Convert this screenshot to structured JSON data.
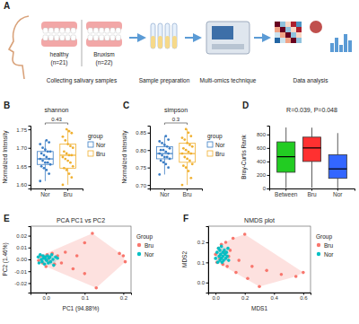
{
  "diagram": {
    "panel": "A",
    "groups": [
      {
        "label": "healthy",
        "n": "(n=21)"
      },
      {
        "label": "Bruxism",
        "n": "(n=22)"
      }
    ],
    "steps": [
      "Collecting salivary samples",
      "Sample preparation",
      "Multi-omics technique",
      "Data analysis"
    ]
  },
  "chart_data": [
    {
      "panel": "B",
      "type": "box",
      "title": "shannon",
      "ylabel": "Normalized Intensity",
      "legend_title": "group",
      "legend": "right",
      "annotations": [
        "0.43"
      ],
      "categories": [
        "Nor",
        "Bru"
      ],
      "ylim": [
        1.59,
        1.76
      ],
      "yticks": [
        {
          "value": 1.6,
          "label": "1.60"
        },
        1.65,
        {
          "value": 1.7,
          "label": "1.70"
        },
        1.75
      ],
      "series": [
        {
          "name": "Nor",
          "color": "#3b7dc4",
          "box": {
            "min": 1.61,
            "q1": 1.655,
            "median": 1.67,
            "q3": 1.69,
            "max": 1.72
          },
          "points": [
            1.61,
            1.63,
            1.64,
            1.645,
            1.65,
            1.655,
            1.66,
            1.66,
            1.665,
            1.67,
            1.67,
            1.675,
            1.68,
            1.685,
            1.69,
            1.69,
            1.695,
            1.7,
            1.71,
            1.715,
            1.72
          ]
        },
        {
          "name": "Bru",
          "color": "#f0b030",
          "box": {
            "min": 1.6,
            "q1": 1.645,
            "median": 1.68,
            "q3": 1.71,
            "max": 1.75
          },
          "points": [
            1.6,
            1.62,
            1.63,
            1.64,
            1.645,
            1.65,
            1.66,
            1.665,
            1.67,
            1.675,
            1.68,
            1.68,
            1.685,
            1.69,
            1.7,
            1.705,
            1.71,
            1.72,
            1.73,
            1.74,
            1.745,
            1.75
          ]
        }
      ]
    },
    {
      "panel": "C",
      "type": "box",
      "title": "simpson",
      "ylabel": "Normalized Intensity",
      "legend_title": "group",
      "legend": "right",
      "annotations": [
        "0.3"
      ],
      "categories": [
        "Nor",
        "Bru"
      ],
      "ylim": [
        0.69,
        0.87
      ],
      "yticks": [
        {
          "value": 0.7,
          "label": "0.70"
        },
        0.75,
        {
          "value": 0.8,
          "label": "0.80"
        },
        0.85
      ],
      "series": [
        {
          "name": "Nor",
          "color": "#3b7dc4",
          "box": {
            "min": 0.73,
            "q1": 0.775,
            "median": 0.79,
            "q3": 0.81,
            "max": 0.84
          },
          "points": [
            0.73,
            0.75,
            0.76,
            0.765,
            0.77,
            0.775,
            0.78,
            0.78,
            0.785,
            0.79,
            0.79,
            0.795,
            0.8,
            0.8,
            0.805,
            0.81,
            0.815,
            0.82,
            0.825,
            0.83,
            0.84
          ]
        },
        {
          "name": "Bru",
          "color": "#f0b030",
          "box": {
            "min": 0.7,
            "q1": 0.765,
            "median": 0.79,
            "q3": 0.82,
            "max": 0.86
          },
          "points": [
            0.7,
            0.72,
            0.74,
            0.75,
            0.755,
            0.76,
            0.77,
            0.775,
            0.78,
            0.79,
            0.79,
            0.795,
            0.8,
            0.805,
            0.81,
            0.815,
            0.82,
            0.83,
            0.835,
            0.84,
            0.85,
            0.86
          ]
        }
      ]
    },
    {
      "panel": "D",
      "type": "box",
      "title": "R=0.039, P=0.048",
      "ylabel": "Bray-Curtis Rank",
      "categories": [
        "Between",
        "Bru",
        "Nor"
      ],
      "colors": [
        "#22cc22",
        "#ff3030",
        "#3366ff"
      ],
      "ylim": [
        0,
        930
      ],
      "yticks": [
        0,
        200,
        400,
        600,
        800
      ],
      "boxes": [
        {
          "min": 5,
          "q1": 240,
          "median": 470,
          "q3": 690,
          "max": 903
        },
        {
          "min": 10,
          "q1": 400,
          "median": 600,
          "q3": 760,
          "max": 900
        },
        {
          "min": 1,
          "q1": 150,
          "median": 290,
          "q3": 500,
          "max": 820
        }
      ]
    },
    {
      "panel": "E",
      "type": "scatter",
      "title": "PCA PC1 vs PC2",
      "xlabel": "PC1 (94.88%)",
      "ylabel": "PC2 (1.46%)",
      "legend_title": "Group",
      "legend": "right",
      "xlim": [
        -0.04,
        0.22
      ],
      "xticks": [
        {
          "value": 0,
          "label": "0.0"
        },
        0.1,
        0.2
      ],
      "ylim": [
        -0.028,
        0.028
      ],
      "yticks": [
        -0.02,
        -0.01,
        {
          "value": 0,
          "label": "0.00"
        },
        0.01,
        0.02
      ],
      "series": [
        {
          "name": "Bru",
          "color": "#f8766d",
          "x": [
            -0.019,
            -0.014,
            -0.009,
            -0.005,
            0.0,
            0.003,
            0.007,
            0.011,
            0.016,
            0.022,
            0.03,
            0.04,
            0.05,
            0.07,
            0.08,
            0.1,
            0.1,
            0.12,
            0.13,
            0.19,
            0.2,
            0.205
          ],
          "y": [
            -0.001,
            0.003,
            -0.003,
            0.002,
            -0.006,
            0.004,
            0.001,
            -0.002,
            0.005,
            -0.004,
            0.003,
            -0.003,
            0.006,
            -0.008,
            0.003,
            0.014,
            -0.012,
            0.022,
            -0.024,
            0.005,
            0.003,
            -0.002
          ]
        },
        {
          "name": "Nor",
          "color": "#00bfc4",
          "x": [
            -0.02,
            -0.018,
            -0.015,
            -0.012,
            -0.01,
            -0.008,
            -0.006,
            -0.004,
            -0.002,
            0.0,
            0.002,
            0.004,
            0.006,
            0.008,
            0.01,
            0.012,
            0.015,
            0.018,
            0.02,
            0.025,
            0.03
          ],
          "y": [
            0.002,
            -0.003,
            0.004,
            0.0,
            -0.002,
            0.003,
            0.001,
            -0.004,
            0.002,
            0.0,
            -0.001,
            0.003,
            -0.003,
            0.001,
            0.002,
            -0.002,
            0.004,
            0.0,
            -0.005,
            0.002,
            0.001
          ]
        }
      ]
    },
    {
      "panel": "F",
      "type": "scatter",
      "title": "NMDS plot",
      "xlabel": "MDS1",
      "ylabel": "MDS2",
      "legend_title": "Group",
      "legend": "right",
      "xlim": [
        -0.05,
        0.65
      ],
      "xticks": [
        {
          "value": 0,
          "label": "0.0"
        },
        0.2,
        0.4,
        0.6
      ],
      "ylim": [
        -0.05,
        0.28
      ],
      "yticks": [
        {
          "value": 0,
          "label": "0.0"
        },
        0.1,
        0.2
      ],
      "series": [
        {
          "name": "Bru",
          "color": "#f8766d",
          "x": [
            0.0,
            0.01,
            0.02,
            0.03,
            0.04,
            0.05,
            0.06,
            0.07,
            0.08,
            0.09,
            0.1,
            0.12,
            0.14,
            0.16,
            0.2,
            0.22,
            0.25,
            0.3,
            0.35,
            0.45,
            0.55,
            0.6
          ],
          "y": [
            0.14,
            0.1,
            0.17,
            0.12,
            0.19,
            0.09,
            0.15,
            0.2,
            0.08,
            0.13,
            0.16,
            0.22,
            0.05,
            0.11,
            0.24,
            0.02,
            0.08,
            -0.02,
            0.06,
            0.04,
            0.03,
            0.05
          ]
        },
        {
          "name": "Nor",
          "color": "#00bfc4",
          "x": [
            0.0,
            0.01,
            0.015,
            0.02,
            0.025,
            0.03,
            0.03,
            0.035,
            0.04,
            0.04,
            0.045,
            0.05,
            0.05,
            0.055,
            0.06,
            0.065,
            0.07,
            0.075,
            0.08,
            0.085,
            0.09
          ],
          "y": [
            0.12,
            0.15,
            0.1,
            0.17,
            0.13,
            0.11,
            0.16,
            0.14,
            0.12,
            0.18,
            0.1,
            0.15,
            0.13,
            0.11,
            0.16,
            0.14,
            0.12,
            0.15,
            0.13,
            0.17,
            0.11
          ]
        }
      ]
    }
  ]
}
